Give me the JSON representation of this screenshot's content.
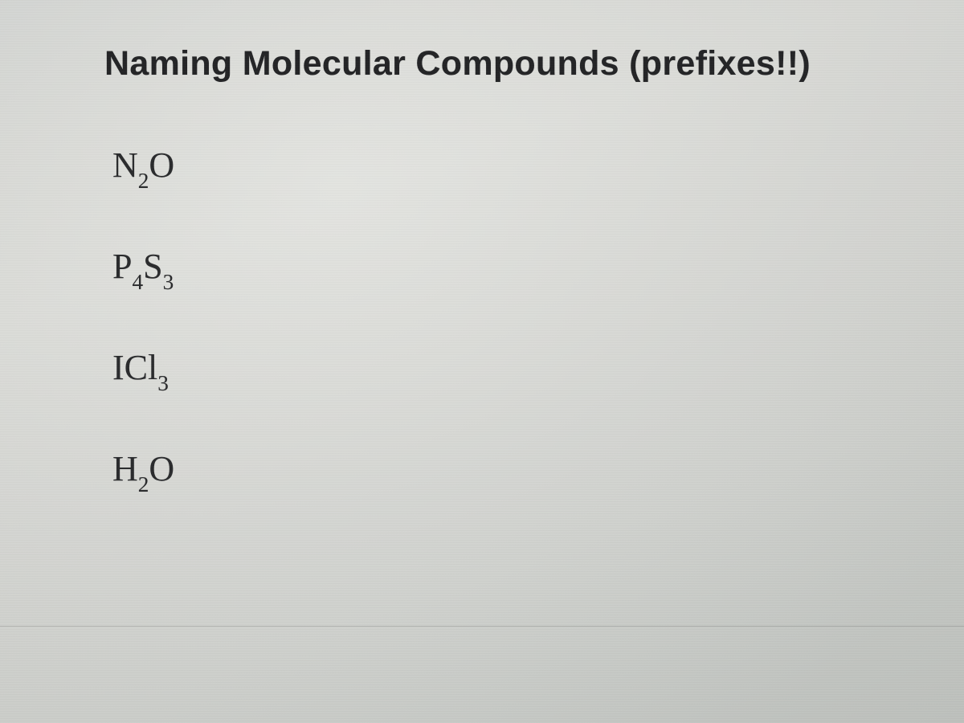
{
  "slide": {
    "title": "Naming Molecular Compounds (prefixes!!)",
    "background_gradient": [
      "#d8dad7",
      "#e0e1dd",
      "#c9ccc8"
    ],
    "title_fontsize": 43,
    "title_color": "#232426",
    "formula_fontsize": 44,
    "formula_color": "#2a2b2d",
    "formula_font": "Times New Roman",
    "compounds": [
      {
        "parts": [
          {
            "el": "N",
            "sub": "2"
          },
          {
            "el": "O",
            "sub": ""
          }
        ]
      },
      {
        "parts": [
          {
            "el": "P",
            "sub": "4"
          },
          {
            "el": "S",
            "sub": "3"
          }
        ]
      },
      {
        "parts": [
          {
            "el": "I",
            "sub": ""
          },
          {
            "el": "Cl",
            "sub": "3"
          }
        ]
      },
      {
        "parts": [
          {
            "el": "H",
            "sub": "2"
          },
          {
            "el": "O",
            "sub": ""
          }
        ]
      }
    ]
  }
}
